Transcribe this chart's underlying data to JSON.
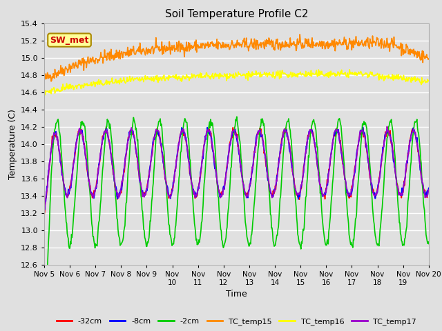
{
  "title": "Soil Temperature Profile C2",
  "xlabel": "Time",
  "ylabel": "Temperature (C)",
  "ylim": [
    12.6,
    15.4
  ],
  "xlim": [
    0,
    15
  ],
  "x_tick_labels": [
    "Nov 5",
    "Nov 6",
    "Nov 7",
    "Nov 8",
    "Nov 9",
    "Nov\n10",
    "Nov\n11",
    "Nov\n12",
    "Nov\n13",
    "Nov\n14",
    "Nov\n15",
    "Nov\n16",
    "Nov\n17",
    "Nov\n18",
    "Nov\n19",
    "Nov 20"
  ],
  "bg_color": "#e0e0e0",
  "sw_met_label": "SW_met",
  "sw_met_bg": "#ffff99",
  "sw_met_border": "#aa8800",
  "sw_met_text_color": "#cc0000",
  "series": {
    "-32cm": {
      "color": "#ff0000",
      "lw": 1.2
    },
    "-8cm": {
      "color": "#0000ff",
      "lw": 1.2
    },
    "-2cm": {
      "color": "#00cc00",
      "lw": 1.2
    },
    "TC_temp15": {
      "color": "#ff8800",
      "lw": 1.2
    },
    "TC_temp16": {
      "color": "#ffff00",
      "lw": 1.2
    },
    "TC_temp17": {
      "color": "#9900cc",
      "lw": 1.2
    }
  },
  "legend_labels": [
    "-32cm",
    "-8cm",
    "-2cm",
    "TC_temp15",
    "TC_temp16",
    "TC_temp17"
  ],
  "legend_colors": [
    "#ff0000",
    "#0000ff",
    "#00cc00",
    "#ff8800",
    "#ffff00",
    "#9900cc"
  ]
}
